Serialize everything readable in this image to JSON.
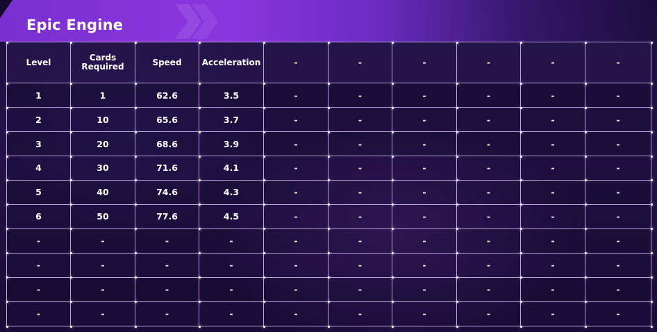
{
  "title": "Epic Engine",
  "colors": {
    "header_accent": "#8b36e0",
    "grid_line": "#b9a4de",
    "text": "#ffffff",
    "background": "#1b0d3c"
  },
  "columns": [
    "Level",
    "Cards Required",
    "Speed",
    "Acceleration",
    "-",
    "-",
    "-",
    "-",
    "-",
    "-"
  ],
  "rows": [
    [
      "1",
      "1",
      "62.6",
      "3.5",
      "-",
      "-",
      "-",
      "-",
      "-",
      "-"
    ],
    [
      "2",
      "10",
      "65.6",
      "3.7",
      "-",
      "-",
      "-",
      "-",
      "-",
      "-"
    ],
    [
      "3",
      "20",
      "68.6",
      "3.9",
      "-",
      "-",
      "-",
      "-",
      "-",
      "-"
    ],
    [
      "4",
      "30",
      "71.6",
      "4.1",
      "-",
      "-",
      "-",
      "-",
      "-",
      "-"
    ],
    [
      "5",
      "40",
      "74.6",
      "4.3",
      "-",
      "-",
      "-",
      "-",
      "-",
      "-"
    ],
    [
      "6",
      "50",
      "77.6",
      "4.5",
      "-",
      "-",
      "-",
      "-",
      "-",
      "-"
    ],
    [
      "-",
      "-",
      "-",
      "-",
      "-",
      "-",
      "-",
      "-",
      "-",
      "-"
    ],
    [
      "-",
      "-",
      "-",
      "-",
      "-",
      "-",
      "-",
      "-",
      "-",
      "-"
    ],
    [
      "-",
      "-",
      "-",
      "-",
      "-",
      "-",
      "-",
      "-",
      "-",
      "-"
    ],
    [
      "-",
      "-",
      "-",
      "-",
      "-",
      "-",
      "-",
      "-",
      "-",
      "-"
    ]
  ]
}
